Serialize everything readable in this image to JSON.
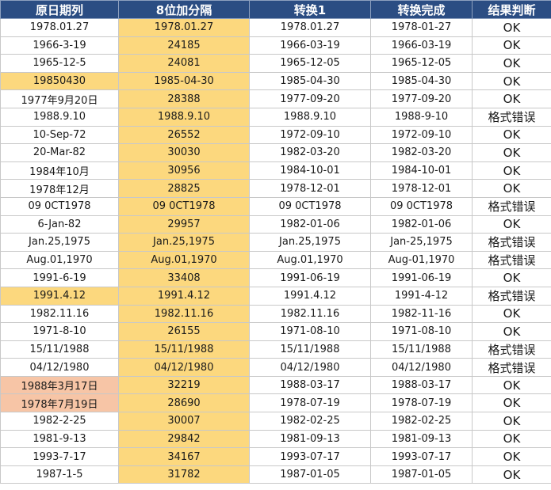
{
  "colors": {
    "header_bg": "#2b4d83",
    "highlight_yellow": "#fcd87e",
    "highlight_peach": "#f7c5a6"
  },
  "headers": [
    "原日期列",
    "8位加分隔",
    "转换1",
    "转换完成",
    "结果判断"
  ],
  "rows": [
    {
      "orig": "1978.01.27",
      "sep": "1978.01.27",
      "conv1": "1978.01.27",
      "done": "1978-01-27",
      "result": "OK",
      "orig_hl": "",
      "sep_hl": "yellow"
    },
    {
      "orig": "1966-3-19",
      "sep": "24185",
      "conv1": "1966-03-19",
      "done": "1966-03-19",
      "result": "OK",
      "orig_hl": "",
      "sep_hl": "yellow"
    },
    {
      "orig": "1965-12-5",
      "sep": "24081",
      "conv1": "1965-12-05",
      "done": "1965-12-05",
      "result": "OK",
      "orig_hl": "",
      "sep_hl": "yellow"
    },
    {
      "orig": "19850430",
      "sep": "1985-04-30",
      "conv1": "1985-04-30",
      "done": "1985-04-30",
      "result": "OK",
      "orig_hl": "yellow",
      "sep_hl": "yellow"
    },
    {
      "orig": "1977年9月20日",
      "sep": "28388",
      "conv1": "1977-09-20",
      "done": "1977-09-20",
      "result": "OK",
      "orig_hl": "",
      "sep_hl": "yellow"
    },
    {
      "orig": "1988.9.10",
      "sep": "1988.9.10",
      "conv1": "1988.9.10",
      "done": "1988-9-10",
      "result": "格式错误",
      "orig_hl": "",
      "sep_hl": "yellow"
    },
    {
      "orig": "10-Sep-72",
      "sep": "26552",
      "conv1": "1972-09-10",
      "done": "1972-09-10",
      "result": "OK",
      "orig_hl": "",
      "sep_hl": "yellow"
    },
    {
      "orig": "20-Mar-82",
      "sep": "30030",
      "conv1": "1982-03-20",
      "done": "1982-03-20",
      "result": "OK",
      "orig_hl": "",
      "sep_hl": "yellow"
    },
    {
      "orig": "1984年10月",
      "sep": "30956",
      "conv1": "1984-10-01",
      "done": "1984-10-01",
      "result": "OK",
      "orig_hl": "",
      "sep_hl": "yellow"
    },
    {
      "orig": "1978年12月",
      "sep": "28825",
      "conv1": "1978-12-01",
      "done": "1978-12-01",
      "result": "OK",
      "orig_hl": "",
      "sep_hl": "yellow"
    },
    {
      "orig": "09 0CT1978",
      "sep": "09 0CT1978",
      "conv1": "09 0CT1978",
      "done": "09 0CT1978",
      "result": "格式错误",
      "orig_hl": "",
      "sep_hl": "yellow"
    },
    {
      "orig": "6-Jan-82",
      "sep": "29957",
      "conv1": "1982-01-06",
      "done": "1982-01-06",
      "result": "OK",
      "orig_hl": "",
      "sep_hl": "yellow"
    },
    {
      "orig": "Jan.25,1975",
      "sep": "Jan.25,1975",
      "conv1": "Jan.25,1975",
      "done": "Jan-25,1975",
      "result": "格式错误",
      "orig_hl": "",
      "sep_hl": "yellow"
    },
    {
      "orig": "Aug.01,1970",
      "sep": "Aug.01,1970",
      "conv1": "Aug.01,1970",
      "done": "Aug-01,1970",
      "result": "格式错误",
      "orig_hl": "",
      "sep_hl": "yellow"
    },
    {
      "orig": "1991-6-19",
      "sep": "33408",
      "conv1": "1991-06-19",
      "done": "1991-06-19",
      "result": "OK",
      "orig_hl": "",
      "sep_hl": "yellow"
    },
    {
      "orig": "1991.4.12",
      "sep": "1991.4.12",
      "conv1": "1991.4.12",
      "done": "1991-4-12",
      "result": "格式错误",
      "orig_hl": "yellow",
      "sep_hl": "yellow"
    },
    {
      "orig": "1982.11.16",
      "sep": "1982.11.16",
      "conv1": "1982.11.16",
      "done": "1982-11-16",
      "result": "OK",
      "orig_hl": "",
      "sep_hl": "yellow"
    },
    {
      "orig": "1971-8-10",
      "sep": "26155",
      "conv1": "1971-08-10",
      "done": "1971-08-10",
      "result": "OK",
      "orig_hl": "",
      "sep_hl": "yellow"
    },
    {
      "orig": "15/11/1988",
      "sep": "15/11/1988",
      "conv1": "15/11/1988",
      "done": "15/11/1988",
      "result": "格式错误",
      "orig_hl": "",
      "sep_hl": "yellow"
    },
    {
      "orig": "04/12/1980",
      "sep": "04/12/1980",
      "conv1": "04/12/1980",
      "done": "04/12/1980",
      "result": "格式错误",
      "orig_hl": "",
      "sep_hl": "yellow"
    },
    {
      "orig": "1988年3月17日",
      "sep": "32219",
      "conv1": "1988-03-17",
      "done": "1988-03-17",
      "result": "OK",
      "orig_hl": "peach",
      "sep_hl": "yellow"
    },
    {
      "orig": "1978年7月19日",
      "sep": "28690",
      "conv1": "1978-07-19",
      "done": "1978-07-19",
      "result": "OK",
      "orig_hl": "peach",
      "sep_hl": "yellow"
    },
    {
      "orig": "1982-2-25",
      "sep": "30007",
      "conv1": "1982-02-25",
      "done": "1982-02-25",
      "result": "OK",
      "orig_hl": "",
      "sep_hl": "yellow"
    },
    {
      "orig": "1981-9-13",
      "sep": "29842",
      "conv1": "1981-09-13",
      "done": "1981-09-13",
      "result": "OK",
      "orig_hl": "",
      "sep_hl": "yellow"
    },
    {
      "orig": "1993-7-17",
      "sep": "34167",
      "conv1": "1993-07-17",
      "done": "1993-07-17",
      "result": "OK",
      "orig_hl": "",
      "sep_hl": "yellow"
    },
    {
      "orig": "1987-1-5",
      "sep": "31782",
      "conv1": "1987-01-05",
      "done": "1987-01-05",
      "result": "OK",
      "orig_hl": "",
      "sep_hl": "yellow"
    }
  ]
}
